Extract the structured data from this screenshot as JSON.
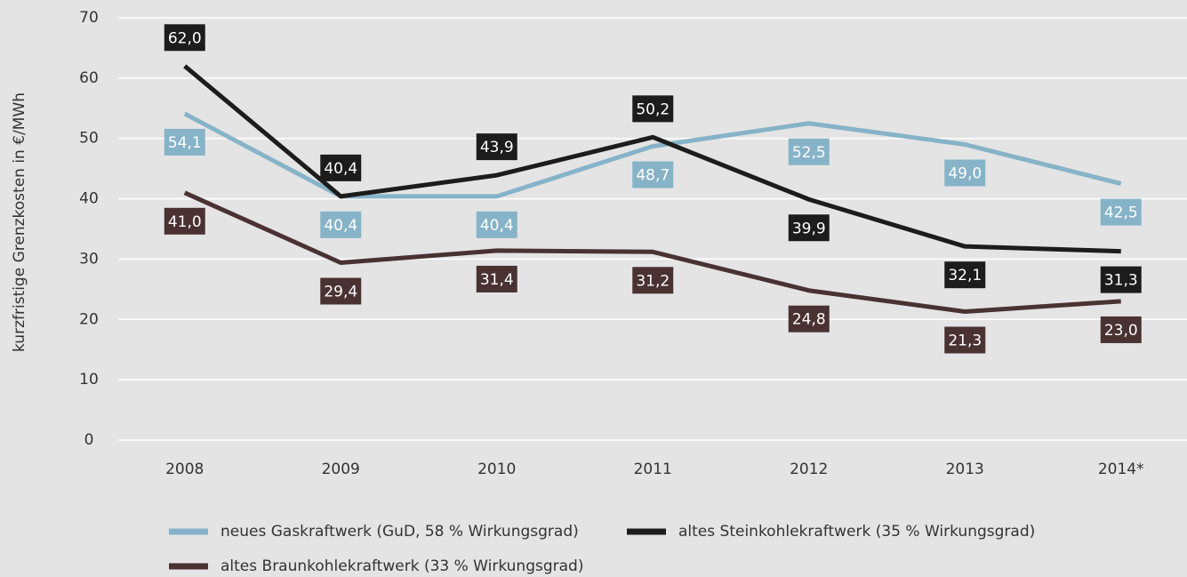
{
  "chart_data": {
    "type": "line",
    "y_label": "kurzfristige Grenzkosten in €/MWh",
    "categories": [
      "2008",
      "2009",
      "2010",
      "2011",
      "2012",
      "2013",
      "2014*"
    ],
    "series": [
      {
        "name": "neues Gaskraftwerk (GuD, 58 % Wirkungsgrad)",
        "color": "#86b3c8",
        "values": [
          54.1,
          40.4,
          40.4,
          48.7,
          52.5,
          49.0,
          42.5
        ],
        "value_labels": [
          "54,1",
          "40,4",
          "40,4",
          "48,7",
          "52,5",
          "49,0",
          "42,5"
        ]
      },
      {
        "name": "altes Steinkohlekraftwerk (35 % Wirkungsgrad)",
        "color": "#1c1c1c",
        "values": [
          62.0,
          40.4,
          43.9,
          50.2,
          39.9,
          32.1,
          31.3
        ],
        "value_labels": [
          "62,0",
          "40,4",
          "43,9",
          "50,2",
          "39,9",
          "32,1",
          "31,3"
        ]
      },
      {
        "name": "altes Braunkohlekraftwerk (33 % Wirkungsgrad)",
        "color": "#4a3232",
        "values": [
          41.0,
          29.4,
          31.4,
          31.2,
          24.8,
          21.3,
          23.0
        ],
        "value_labels": [
          "41,0",
          "29,4",
          "31,4",
          "31,2",
          "24,8",
          "21,3",
          "23,0"
        ]
      }
    ],
    "ylim": [
      0,
      70
    ],
    "yticks": [
      0,
      10,
      20,
      30,
      40,
      50,
      60,
      70
    ],
    "grid": true
  }
}
